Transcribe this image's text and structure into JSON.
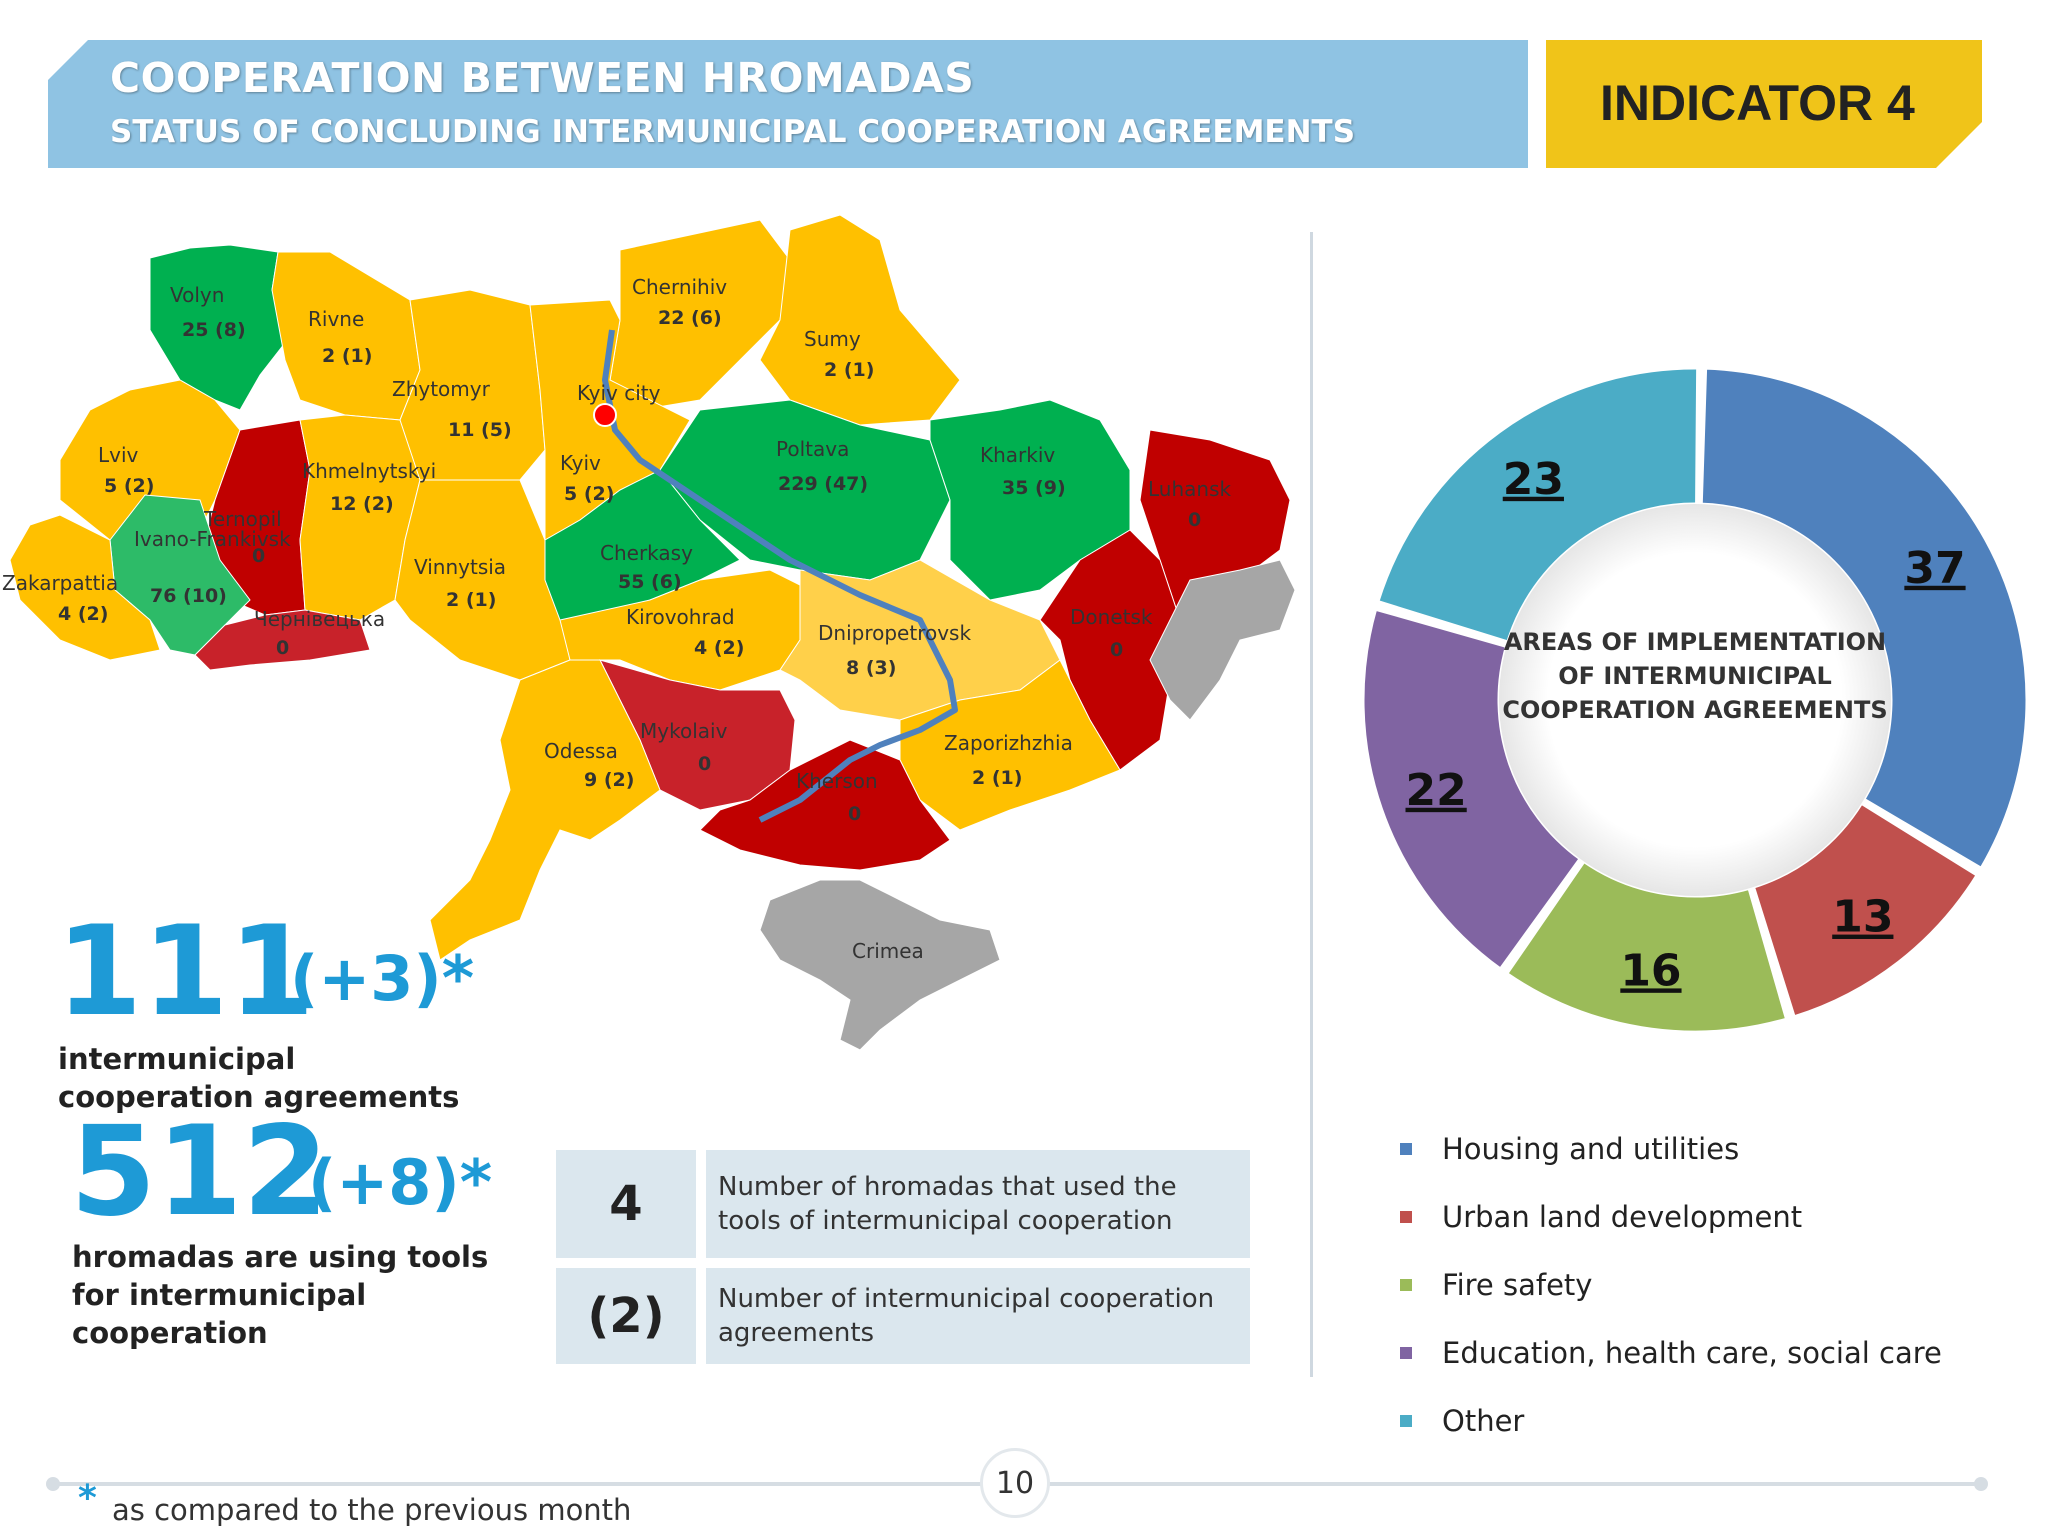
{
  "header": {
    "title": "COOPERATION BETWEEN HROMADAS",
    "subtitle": "STATUS OF CONCLUDING INTERMUNICIPAL COOPERATION AGREEMENTS",
    "indicator": "INDICATOR 4",
    "band_color": "#8fc3e3",
    "indicator_color": "#f0c419"
  },
  "map": {
    "colors": {
      "green": "#00b050",
      "light_green": "#2dbb68",
      "yellow": "#ffc000",
      "light_yellow": "#ffd04a",
      "red": "#c00000",
      "light_red": "#c8222a",
      "gray": "#a6a6a6",
      "river": "#4f81bd"
    },
    "regions": [
      {
        "name": "Volyn",
        "value": "25 (8)",
        "color": "green"
      },
      {
        "name": "Rivne",
        "value": "2 (1)",
        "color": "yellow"
      },
      {
        "name": "Zhytomyr",
        "value": "11 (5)",
        "color": "yellow"
      },
      {
        "name": "Chernihiv",
        "value": "22 (6)",
        "color": "yellow"
      },
      {
        "name": "Sumy",
        "value": "2 (1)",
        "color": "yellow"
      },
      {
        "name": "Kyiv city",
        "value": "",
        "color": "yellow"
      },
      {
        "name": "Lviv",
        "value": "5 (2)",
        "color": "yellow"
      },
      {
        "name": "Ternopil",
        "value": "0",
        "color": "red"
      },
      {
        "name": "Khmelnytskyi",
        "value": "12 (2)",
        "color": "yellow"
      },
      {
        "name": "Kyiv",
        "value": "5 (2)",
        "color": "yellow"
      },
      {
        "name": "Poltava",
        "value": "229 (47)",
        "color": "green"
      },
      {
        "name": "Kharkiv",
        "value": "35 (9)",
        "color": "green"
      },
      {
        "name": "Luhansk",
        "value": "0",
        "color": "red"
      },
      {
        "name": "Ivano-Frankivsk",
        "value": "76 (10)",
        "color": "light_green"
      },
      {
        "name": "Zakarpattia",
        "value": "4 (2)",
        "color": "yellow"
      },
      {
        "name": "Vinnytsia",
        "value": "2 (1)",
        "color": "yellow"
      },
      {
        "name": "Cherkasy",
        "value": "55 (6)",
        "color": "green"
      },
      {
        "name": "Чернівецька",
        "value": "0",
        "color": "light_red"
      },
      {
        "name": "Kirovohrad",
        "value": "4 (2)",
        "color": "yellow"
      },
      {
        "name": "Dnipropetrovsk",
        "value": "8 (3)",
        "color": "light_yellow"
      },
      {
        "name": "Donetsk",
        "value": "0",
        "color": "red"
      },
      {
        "name": "Mykolaiv",
        "value": "0",
        "color": "light_red"
      },
      {
        "name": "Odessa",
        "value": "9 (2)",
        "color": "yellow"
      },
      {
        "name": "Zaporizhzhia",
        "value": "2 (1)",
        "color": "yellow"
      },
      {
        "name": "Kherson",
        "value": "0",
        "color": "red"
      },
      {
        "name": "Crimea",
        "value": "",
        "color": "gray"
      }
    ]
  },
  "stats": {
    "agreements": "111",
    "agreements_delta": "(+3)*",
    "agreements_desc": "intermunicipal cooperation agreements",
    "hromadas": "512",
    "hromadas_delta": "(+8)*",
    "hromadas_desc": "hromadas are using tools for intermunicipal cooperation"
  },
  "key": [
    {
      "symbol": "4",
      "text": "Number of hromadas that used the tools of intermunicipal cooperation"
    },
    {
      "symbol": "(2)",
      "text": "Number  of intermunicipal cooperation agreements"
    }
  ],
  "chart_data": {
    "type": "pie",
    "title": "AREAS OF IMPLEMENTATION OF INTERMUNICIPAL COOPERATION AGREEMENTS",
    "categories": [
      "Housing and utilities",
      "Urban land development",
      "Fire safety",
      "Education, health care, social care",
      "Other"
    ],
    "values": [
      37,
      13,
      16,
      22,
      23
    ],
    "colors": [
      "#4f81bd",
      "#c0504d",
      "#9bbb59",
      "#8064a2",
      "#4bacc6"
    ],
    "legend": "bottom"
  },
  "footer": {
    "page": "10",
    "footnote_star": "*",
    "footnote": "as compared to the previous month"
  }
}
